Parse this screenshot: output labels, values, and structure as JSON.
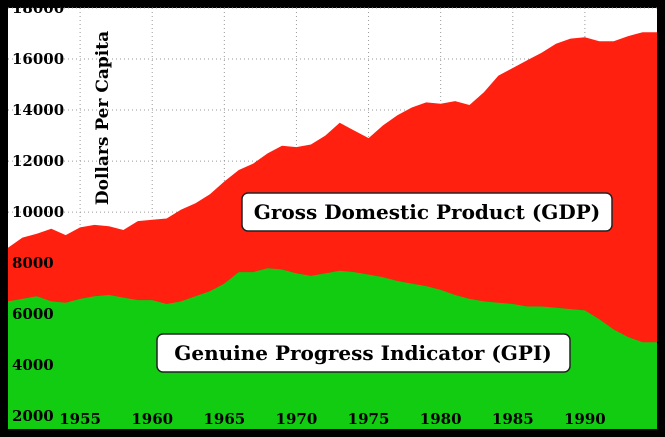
{
  "chart_data": {
    "type": "area",
    "ylabel": "Dollars Per Capita",
    "xlabel": "",
    "title": "",
    "xlim": [
      1950,
      1995
    ],
    "ylim": [
      1500,
      18000
    ],
    "x_ticks": [
      1955,
      1960,
      1965,
      1970,
      1975,
      1980,
      1985,
      1990
    ],
    "x_tick_labels": [
      "1955",
      "1960",
      "1965",
      "1970",
      "1975",
      "1980",
      "1985",
      "1990"
    ],
    "y_ticks": [
      2000,
      4000,
      6000,
      8000,
      10000,
      12000,
      14000,
      16000,
      18000
    ],
    "y_tick_labels": [
      "2000",
      "4000",
      "6000",
      "8000",
      "10000",
      "12000",
      "14000",
      "16000",
      "18000"
    ],
    "grid": true,
    "annotations": [
      {
        "text": "Gross Domestic Product (GDP)",
        "series": "GDP"
      },
      {
        "text": "Genuine Progress Indicator (GPI)",
        "series": "GPI"
      }
    ],
    "series": [
      {
        "name": "Gross Domestic Product (GDP)",
        "color": "#ff2010",
        "x": [
          1950,
          1951,
          1952,
          1953,
          1954,
          1955,
          1956,
          1957,
          1958,
          1959,
          1960,
          1961,
          1962,
          1963,
          1964,
          1965,
          1966,
          1967,
          1968,
          1969,
          1970,
          1971,
          1972,
          1973,
          1974,
          1975,
          1976,
          1977,
          1978,
          1979,
          1980,
          1981,
          1982,
          1983,
          1984,
          1985,
          1986,
          1987,
          1988,
          1989,
          1990,
          1991,
          1992,
          1993,
          1994
        ],
        "values": [
          8600,
          9000,
          9150,
          9350,
          9100,
          9400,
          9500,
          9450,
          9300,
          9650,
          9700,
          9750,
          10100,
          10350,
          10700,
          11200,
          11650,
          11900,
          12300,
          12600,
          12550,
          12650,
          13000,
          13500,
          13200,
          12900,
          13400,
          13800,
          14100,
          14300,
          14250,
          14350,
          14200,
          14700,
          15350,
          15650,
          15950,
          16250,
          16600,
          16800,
          16850,
          16700,
          16700,
          16900,
          17050
        ]
      },
      {
        "name": "Genuine Progress Indicator (GPI)",
        "color": "#11cc11",
        "x": [
          1950,
          1951,
          1952,
          1953,
          1954,
          1955,
          1956,
          1957,
          1958,
          1959,
          1960,
          1961,
          1962,
          1963,
          1964,
          1965,
          1966,
          1967,
          1968,
          1969,
          1970,
          1971,
          1972,
          1973,
          1974,
          1975,
          1976,
          1977,
          1978,
          1979,
          1980,
          1981,
          1982,
          1983,
          1984,
          1985,
          1986,
          1987,
          1988,
          1989,
          1990,
          1991,
          1992,
          1993,
          1994
        ],
        "values": [
          6500,
          6600,
          6700,
          6500,
          6450,
          6600,
          6700,
          6750,
          6650,
          6550,
          6550,
          6400,
          6500,
          6700,
          6900,
          7200,
          7650,
          7650,
          7800,
          7750,
          7600,
          7500,
          7600,
          7700,
          7650,
          7550,
          7450,
          7300,
          7200,
          7100,
          6950,
          6750,
          6600,
          6500,
          6450,
          6400,
          6300,
          6300,
          6250,
          6200,
          6150,
          5800,
          5400,
          5100,
          4900
        ]
      }
    ]
  }
}
